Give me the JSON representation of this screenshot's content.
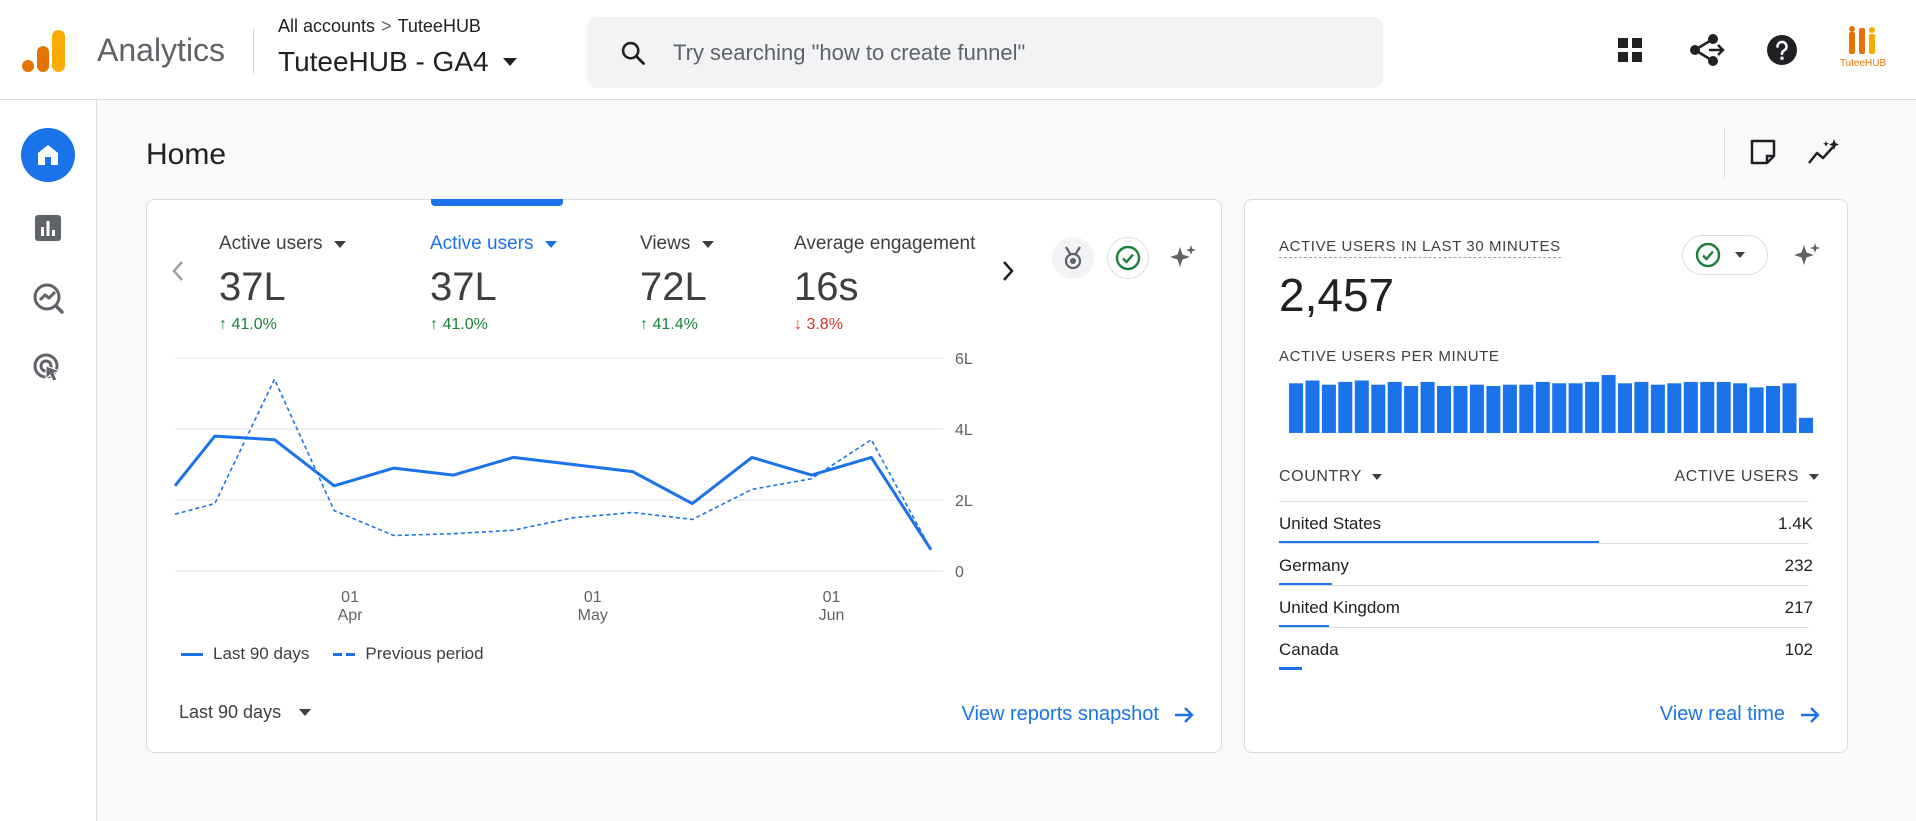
{
  "header": {
    "app_name": "Analytics",
    "breadcrumb_root": "All accounts",
    "breadcrumb_sep": ">",
    "breadcrumb_account": "TuteeHUB",
    "property_name": "TuteeHUB - GA4",
    "search_placeholder": "Try searching \"how to create funnel\"",
    "avatar_text": "TuteeHUB"
  },
  "page": {
    "title": "Home"
  },
  "overview": {
    "metrics": [
      {
        "label": "Active users",
        "value": "37L",
        "delta": "41.0%",
        "direction": "up"
      },
      {
        "label": "Active users",
        "value": "37L",
        "delta": "41.0%",
        "direction": "up",
        "selected": true
      },
      {
        "label": "Views",
        "value": "72L",
        "delta": "41.4%",
        "direction": "up"
      },
      {
        "label": "Average engagement",
        "value": "16s",
        "delta": "3.8%",
        "direction": "down"
      }
    ],
    "legend_current": "Last 90 days",
    "legend_previous": "Previous period",
    "date_range": "Last 90 days",
    "link_label": "View reports snapshot"
  },
  "chart_data": {
    "type": "line",
    "y_ticks": [
      "6L",
      "4L",
      "2L",
      "0"
    ],
    "ylim": [
      0,
      6
    ],
    "x_ticks": [
      {
        "day": "01",
        "month": "Apr"
      },
      {
        "day": "01",
        "month": "May"
      },
      {
        "day": "01",
        "month": "Jun"
      }
    ],
    "x_tick_positions": [
      8.8,
      21.0,
      33.0
    ],
    "xlim": [
      0,
      38
    ],
    "series": [
      {
        "name": "Last 90 days",
        "style": "solid",
        "x": [
          0,
          2,
          5,
          8,
          11,
          14,
          17,
          20,
          23,
          26,
          29,
          32,
          35,
          38
        ],
        "y": [
          2.4,
          3.8,
          3.7,
          2.4,
          2.9,
          2.7,
          3.2,
          3.0,
          2.8,
          1.9,
          3.2,
          2.7,
          3.2,
          0.6
        ]
      },
      {
        "name": "Previous period",
        "style": "dashed",
        "x": [
          0,
          2,
          5,
          8,
          11,
          14,
          17,
          20,
          23,
          26,
          29,
          32,
          35,
          38
        ],
        "y": [
          1.6,
          1.9,
          5.4,
          1.7,
          1.0,
          1.05,
          1.15,
          1.5,
          1.65,
          1.45,
          2.3,
          2.6,
          3.7,
          0.6
        ]
      }
    ]
  },
  "realtime": {
    "title": "ACTIVE USERS IN LAST 30 MINUTES",
    "value": "2,457",
    "per_minute_label": "ACTIVE USERS PER MINUTE",
    "per_minute": [
      36,
      38,
      35,
      37,
      38,
      35,
      37,
      34,
      37,
      34,
      34,
      35,
      34,
      35,
      35,
      37,
      36,
      36,
      37,
      42,
      36,
      37,
      35,
      36,
      37,
      37,
      37,
      36,
      33,
      34,
      36,
      11
    ],
    "col_country": "COUNTRY",
    "col_users": "ACTIVE USERS",
    "rows": [
      {
        "country": "United States",
        "users": "1.4K",
        "share": 1.0
      },
      {
        "country": "Germany",
        "users": "232",
        "share": 0.166
      },
      {
        "country": "United Kingdom",
        "users": "217",
        "share": 0.155
      },
      {
        "country": "Canada",
        "users": "102",
        "share": 0.073
      }
    ],
    "link_label": "View real time"
  },
  "colors": {
    "accent": "#1a73e8",
    "positive": "#188038",
    "negative": "#d93025",
    "logo_orange": "#f9ab00",
    "logo_deep": "#e37400"
  }
}
